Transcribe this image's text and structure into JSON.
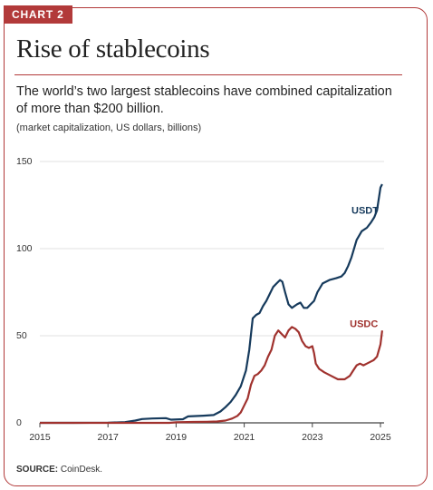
{
  "tag": "CHART 2",
  "title": "Rise of stablecoins",
  "subtitle": "The world’s two largest stablecoins have combined capitalization of more than $200 billion.",
  "units_note": "(market capitalization, US dollars, billions)",
  "source": {
    "label": "SOURCE:",
    "text": " CoinDesk."
  },
  "colors": {
    "accent": "#b23a3a",
    "usdt": "#163a5c",
    "usdc": "#a0322e"
  },
  "chart_data": {
    "type": "line",
    "xlabel": "",
    "ylabel": "",
    "xlim": [
      2015,
      2025
    ],
    "ylim": [
      0,
      150
    ],
    "x_ticks": [
      "2015",
      "2017",
      "2019",
      "2021",
      "2023",
      "2025"
    ],
    "y_ticks": [
      "0",
      "50",
      "100",
      "150"
    ],
    "grid": "horizontal",
    "series": [
      {
        "name": "USDT",
        "color": "#163a5c",
        "points": [
          [
            2015.0,
            0
          ],
          [
            2016.0,
            0
          ],
          [
            2017.0,
            0.1
          ],
          [
            2017.5,
            0.4
          ],
          [
            2017.8,
            1.3
          ],
          [
            2018.0,
            2.2
          ],
          [
            2018.3,
            2.5
          ],
          [
            2018.7,
            2.7
          ],
          [
            2018.85,
            1.8
          ],
          [
            2019.2,
            2.1
          ],
          [
            2019.35,
            3.7
          ],
          [
            2019.8,
            4.1
          ],
          [
            2020.1,
            4.5
          ],
          [
            2020.3,
            6.5
          ],
          [
            2020.45,
            9
          ],
          [
            2020.6,
            12
          ],
          [
            2020.75,
            16
          ],
          [
            2020.9,
            21
          ],
          [
            2021.05,
            30
          ],
          [
            2021.15,
            42
          ],
          [
            2021.25,
            60
          ],
          [
            2021.35,
            62
          ],
          [
            2021.45,
            63
          ],
          [
            2021.55,
            67
          ],
          [
            2021.65,
            70
          ],
          [
            2021.75,
            74
          ],
          [
            2021.85,
            78
          ],
          [
            2021.95,
            80
          ],
          [
            2022.05,
            82
          ],
          [
            2022.12,
            81
          ],
          [
            2022.2,
            75
          ],
          [
            2022.3,
            68
          ],
          [
            2022.4,
            66
          ],
          [
            2022.55,
            68
          ],
          [
            2022.65,
            69
          ],
          [
            2022.75,
            66
          ],
          [
            2022.85,
            66
          ],
          [
            2022.95,
            68
          ],
          [
            2023.05,
            70
          ],
          [
            2023.15,
            75
          ],
          [
            2023.3,
            80
          ],
          [
            2023.5,
            82
          ],
          [
            2023.7,
            83
          ],
          [
            2023.85,
            84
          ],
          [
            2023.95,
            86
          ],
          [
            2024.05,
            90
          ],
          [
            2024.15,
            95
          ],
          [
            2024.3,
            105
          ],
          [
            2024.45,
            110
          ],
          [
            2024.6,
            112
          ],
          [
            2024.72,
            115
          ],
          [
            2024.82,
            118
          ],
          [
            2024.9,
            122
          ],
          [
            2025.0,
            135
          ],
          [
            2025.05,
            137
          ]
        ]
      },
      {
        "name": "USDC",
        "color": "#a0322e",
        "points": [
          [
            2015.0,
            0
          ],
          [
            2018.8,
            0
          ],
          [
            2019.0,
            0.3
          ],
          [
            2019.5,
            0.5
          ],
          [
            2019.9,
            0.6
          ],
          [
            2020.2,
            0.8
          ],
          [
            2020.45,
            1.3
          ],
          [
            2020.65,
            2.5
          ],
          [
            2020.8,
            4
          ],
          [
            2020.9,
            6
          ],
          [
            2021.0,
            10
          ],
          [
            2021.1,
            14
          ],
          [
            2021.2,
            22
          ],
          [
            2021.3,
            27
          ],
          [
            2021.4,
            28
          ],
          [
            2021.5,
            30
          ],
          [
            2021.6,
            33
          ],
          [
            2021.7,
            38
          ],
          [
            2021.8,
            42
          ],
          [
            2021.9,
            50
          ],
          [
            2022.0,
            53
          ],
          [
            2022.1,
            51
          ],
          [
            2022.2,
            49
          ],
          [
            2022.3,
            53
          ],
          [
            2022.4,
            55
          ],
          [
            2022.5,
            54
          ],
          [
            2022.6,
            52
          ],
          [
            2022.7,
            47
          ],
          [
            2022.8,
            44
          ],
          [
            2022.9,
            43
          ],
          [
            2023.0,
            44
          ],
          [
            2023.05,
            40
          ],
          [
            2023.1,
            34
          ],
          [
            2023.2,
            31
          ],
          [
            2023.35,
            29
          ],
          [
            2023.55,
            27
          ],
          [
            2023.75,
            25
          ],
          [
            2023.95,
            25
          ],
          [
            2024.1,
            27
          ],
          [
            2024.2,
            30
          ],
          [
            2024.3,
            33
          ],
          [
            2024.4,
            34
          ],
          [
            2024.5,
            33
          ],
          [
            2024.6,
            34
          ],
          [
            2024.7,
            35
          ],
          [
            2024.8,
            36
          ],
          [
            2024.9,
            38
          ],
          [
            2025.0,
            45
          ],
          [
            2025.05,
            53
          ]
        ]
      }
    ]
  }
}
